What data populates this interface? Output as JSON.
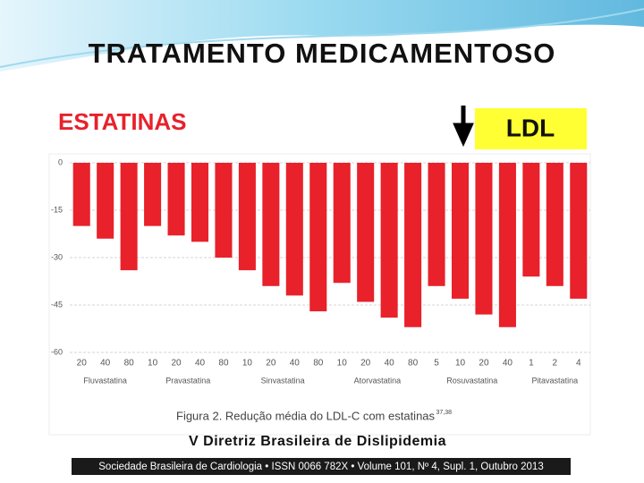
{
  "header": {
    "title": "TRATAMENTO MEDICAMENTOSO",
    "subtitle": "ESTATINAS",
    "badge": "LDL"
  },
  "chart_data": {
    "type": "bar",
    "color": "#e8212b",
    "groups": [
      {
        "label": "Fluvastatina",
        "categories": [
          "20",
          "40",
          "80"
        ],
        "values": [
          -20,
          -24,
          -34
        ]
      },
      {
        "label": "Pravastatina",
        "categories": [
          "10",
          "20",
          "40",
          "80"
        ],
        "values": [
          -20,
          -23,
          -25,
          -30
        ]
      },
      {
        "label": "Sinvastatina",
        "categories": [
          "10",
          "20",
          "40",
          "80"
        ],
        "values": [
          -34,
          -39,
          -42,
          -47
        ]
      },
      {
        "label": "Atorvastatina",
        "categories": [
          "10",
          "20",
          "40",
          "80"
        ],
        "values": [
          -38,
          -44,
          -49,
          -52
        ]
      },
      {
        "label": "Rosuvastatina",
        "categories": [
          "5",
          "10",
          "20",
          "40"
        ],
        "values": [
          -39,
          -43,
          -48,
          -52
        ]
      },
      {
        "label": "Pitavastatina",
        "categories": [
          "1",
          "2",
          "4"
        ],
        "values": [
          -36,
          -39,
          -43
        ]
      }
    ],
    "ylim": [
      -60,
      0
    ],
    "yticks": [
      0,
      -15,
      -30,
      -45,
      -60
    ],
    "grid": true,
    "caption": "Figura 2. Redução média do LDL-C com estatinas",
    "caption_ref": "37,38"
  },
  "source": "V Diretriz Brasileira de Dislipidemia",
  "footer": "Sociedade Brasileira de Cardiologia • ISSN 0066 782X • Volume 101, Nº 4, Supl. 1, Outubro 2013"
}
